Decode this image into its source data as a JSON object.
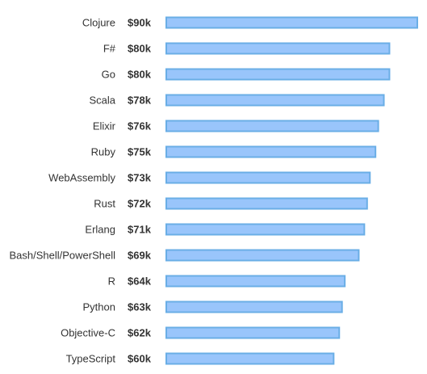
{
  "chart_data": {
    "type": "bar",
    "orientation": "horizontal",
    "categories": [
      "Clojure",
      "F#",
      "Go",
      "Scala",
      "Elixir",
      "Ruby",
      "WebAssembly",
      "Rust",
      "Erlang",
      "Bash/Shell/PowerShell",
      "R",
      "Python",
      "Objective-C",
      "TypeScript"
    ],
    "values": [
      90,
      80,
      80,
      78,
      76,
      75,
      73,
      72,
      71,
      69,
      64,
      63,
      62,
      60
    ],
    "value_labels": [
      "$90k",
      "$80k",
      "$80k",
      "$78k",
      "$76k",
      "$75k",
      "$73k",
      "$72k",
      "$71k",
      "$69k",
      "$64k",
      "$63k",
      "$62k",
      "$60k"
    ],
    "title": "",
    "xlabel": "",
    "ylabel": "",
    "xlim": [
      0,
      90
    ],
    "grid": false,
    "legend": "none",
    "colors": {
      "bar_fill": "#99c5fb",
      "bar_stroke": "#6aaee6",
      "text": "#333333"
    }
  }
}
